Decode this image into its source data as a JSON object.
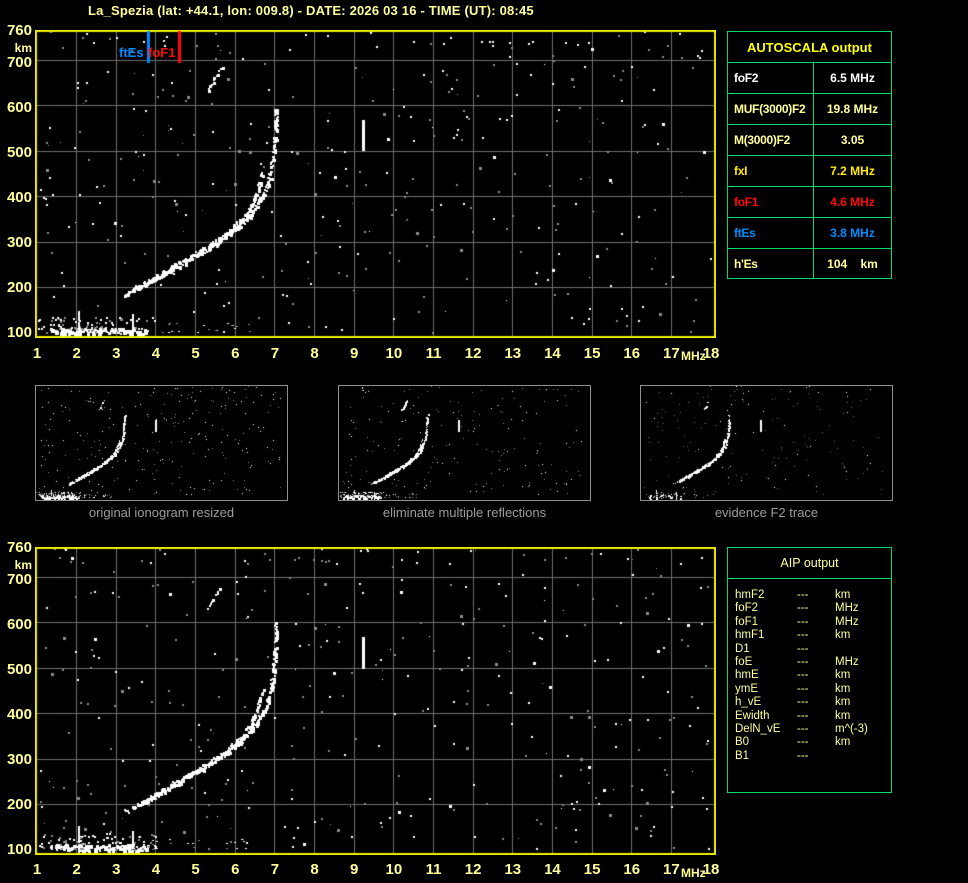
{
  "title": "La_Spezia (lat: +44.1, lon: 009.8) - DATE: 2026 03 16 - TIME (UT): 08:45",
  "colors": {
    "background": "#000000",
    "plot_border": "#ebeb00",
    "grid": "#6e6e6e",
    "axis_label": "#ffff9c",
    "table_border": "#00dc64",
    "caption": "#9c9c9c",
    "white": "#ffffff",
    "pale_yellow": "#ffff9c",
    "bright_yellow": "#ffeb00",
    "red": "#ff0a0a",
    "blue": "#008cff",
    "trace": "#ffffff",
    "noise_gray": "#8c8c8c"
  },
  "autoscala": {
    "header": "AUTOSCALA output",
    "rows": [
      {
        "label": "foF2",
        "value": "6.5 MHz",
        "color": "white"
      },
      {
        "label": "MUF(3000)F2",
        "value": "19.8 MHz",
        "color": "pale_yellow"
      },
      {
        "label": "M(3000)F2",
        "value": "3.05",
        "color": "pale_yellow"
      },
      {
        "label": "fxI",
        "value": "7.2 MHz",
        "color": "bright_yellow"
      },
      {
        "label": "foF1",
        "value": "4.6 MHz",
        "color": "red"
      },
      {
        "label": "ftEs",
        "value": "3.8 MHz",
        "color": "blue"
      },
      {
        "label": "h'Es",
        "value": "104    km",
        "color": "pale_yellow"
      }
    ]
  },
  "aip": {
    "header": "AIP output",
    "rows": [
      {
        "label": "hmF2",
        "value": "---",
        "unit": "km"
      },
      {
        "label": "foF2",
        "value": "---",
        "unit": "MHz"
      },
      {
        "label": "foF1",
        "value": "---",
        "unit": "MHz"
      },
      {
        "label": "hmF1",
        "value": "---",
        "unit": "km"
      },
      {
        "label": "D1",
        "value": "---",
        "unit": ""
      },
      {
        "label": "foE",
        "value": "---",
        "unit": "MHz"
      },
      {
        "label": "hmE",
        "value": "---",
        "unit": "km"
      },
      {
        "label": "ymE",
        "value": "---",
        "unit": "km"
      },
      {
        "label": "h_vE",
        "value": "---",
        "unit": "km"
      },
      {
        "label": "Ewidth",
        "value": "---",
        "unit": "km"
      },
      {
        "label": "DelN_vE",
        "value": "---",
        "unit": "m^(-3)"
      },
      {
        "label": "B0",
        "value": "---",
        "unit": "km"
      },
      {
        "label": "B1",
        "value": "---",
        "unit": ""
      }
    ]
  },
  "thumbnails": [
    {
      "caption": "original ionogram resized"
    },
    {
      "caption": "eliminate multiple reflections"
    },
    {
      "caption": "evidence F2 trace"
    }
  ],
  "chart_data": {
    "type": "scatter",
    "title": "Ionogram echo trace (virtual height vs frequency)",
    "x_axis": {
      "label": "MHz",
      "range": [
        1,
        18
      ],
      "ticks": [
        1,
        2,
        3,
        4,
        5,
        6,
        7,
        8,
        9,
        10,
        11,
        12,
        13,
        14,
        15,
        16,
        17,
        18
      ]
    },
    "y_axis": {
      "label": "km",
      "range": [
        100,
        760
      ],
      "ticks": [
        760,
        700,
        600,
        500,
        400,
        300,
        200,
        100
      ]
    },
    "grid": true,
    "markers": [
      {
        "name": "ftEs",
        "freq_mhz": 3.8,
        "color": "blue"
      },
      {
        "name": "foF1",
        "freq_mhz": 4.6,
        "color": "red"
      }
    ],
    "series": [
      {
        "name": "F-trace-ordinary",
        "points": [
          [
            3.22,
            185
          ],
          [
            3.45,
            196
          ],
          [
            3.7,
            208
          ],
          [
            3.95,
            221
          ],
          [
            4.2,
            234
          ],
          [
            4.45,
            247
          ],
          [
            4.7,
            259
          ],
          [
            4.95,
            272
          ],
          [
            5.2,
            285
          ],
          [
            5.45,
            299
          ],
          [
            5.7,
            314
          ],
          [
            5.95,
            331
          ],
          [
            6.15,
            349
          ],
          [
            6.35,
            371
          ],
          [
            6.5,
            396
          ],
          [
            6.6,
            424
          ],
          [
            6.68,
            452
          ]
        ]
      },
      {
        "name": "F-trace-extraordinary",
        "points": [
          [
            3.6,
            200
          ],
          [
            3.85,
            212
          ],
          [
            4.1,
            224
          ],
          [
            4.35,
            237
          ],
          [
            4.6,
            249
          ],
          [
            4.85,
            262
          ],
          [
            5.1,
            275
          ],
          [
            5.35,
            288
          ],
          [
            5.6,
            302
          ],
          [
            5.85,
            318
          ],
          [
            6.1,
            336
          ],
          [
            6.35,
            357
          ],
          [
            6.55,
            381
          ],
          [
            6.72,
            407
          ],
          [
            6.84,
            434
          ],
          [
            6.92,
            463
          ],
          [
            6.97,
            496
          ],
          [
            7.0,
            532
          ],
          [
            7.02,
            566
          ],
          [
            7.03,
            597
          ]
        ]
      },
      {
        "name": "multiple-reflection",
        "points": [
          [
            5.3,
            633
          ],
          [
            5.42,
            652
          ],
          [
            5.55,
            670
          ],
          [
            5.66,
            686
          ]
        ]
      }
    ],
    "interference_bar": {
      "freq_mhz": 9.24,
      "km_range": [
        503,
        568
      ]
    },
    "es_layer": {
      "freq_range_mhz": [
        1.0,
        4.0
      ],
      "km_range": [
        100,
        136
      ],
      "spikes": [
        [
          2.04,
          100,
          155
        ],
        [
          3.42,
          100,
          142
        ]
      ]
    }
  }
}
